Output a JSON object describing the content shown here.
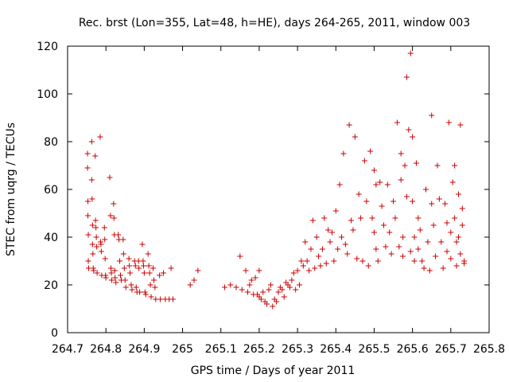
{
  "chart_data": {
    "type": "scatter",
    "title": "Rec. brst (Lon=355, Lat=48, h=HE), days 264-265, 2011, window 003",
    "xlabel": "GPS time / Days of year 2011",
    "ylabel": "STEC from uqrg / TECUs",
    "xlim": [
      264.7,
      265.8
    ],
    "ylim": [
      0,
      120
    ],
    "xticks": [
      "264.7",
      "264.8",
      "264.9",
      "265",
      "265.1",
      "265.2",
      "265.3",
      "265.4",
      "265.5",
      "265.6",
      "265.7",
      "265.8"
    ],
    "yticks": [
      "0",
      "20",
      "40",
      "60",
      "80",
      "100",
      "120"
    ],
    "grid": false,
    "marker": "+",
    "color": "#cc0000",
    "points": [
      [
        264.752,
        75
      ],
      [
        264.752,
        69
      ],
      [
        264.753,
        55
      ],
      [
        264.753,
        49
      ],
      [
        264.754,
        41
      ],
      [
        264.754,
        30
      ],
      [
        264.755,
        27
      ],
      [
        264.763,
        80
      ],
      [
        264.763,
        64
      ],
      [
        264.764,
        56
      ],
      [
        264.765,
        45
      ],
      [
        264.765,
        37
      ],
      [
        264.766,
        33
      ],
      [
        264.767,
        27
      ],
      [
        264.768,
        26
      ],
      [
        264.772,
        74
      ],
      [
        264.773,
        47
      ],
      [
        264.774,
        44
      ],
      [
        264.775,
        40
      ],
      [
        264.776,
        36
      ],
      [
        264.777,
        25
      ],
      [
        264.785,
        82
      ],
      [
        264.786,
        38
      ],
      [
        264.787,
        37
      ],
      [
        264.788,
        34
      ],
      [
        264.789,
        24
      ],
      [
        264.796,
        44
      ],
      [
        264.797,
        39
      ],
      [
        264.798,
        31
      ],
      [
        264.799,
        24
      ],
      [
        264.8,
        23
      ],
      [
        264.81,
        65
      ],
      [
        264.812,
        49
      ],
      [
        264.813,
        27
      ],
      [
        264.814,
        25
      ],
      [
        264.815,
        22
      ],
      [
        264.82,
        54
      ],
      [
        264.821,
        48
      ],
      [
        264.822,
        41
      ],
      [
        264.823,
        26
      ],
      [
        264.824,
        23
      ],
      [
        264.826,
        21
      ],
      [
        264.832,
        41
      ],
      [
        264.834,
        39
      ],
      [
        264.836,
        30
      ],
      [
        264.838,
        24
      ],
      [
        264.84,
        22
      ],
      [
        264.845,
        39
      ],
      [
        264.846,
        33
      ],
      [
        264.848,
        27
      ],
      [
        264.85,
        22
      ],
      [
        264.852,
        19
      ],
      [
        264.86,
        31
      ],
      [
        264.861,
        28
      ],
      [
        264.863,
        25
      ],
      [
        264.866,
        20
      ],
      [
        264.868,
        18
      ],
      [
        264.875,
        30
      ],
      [
        264.877,
        28
      ],
      [
        264.879,
        19
      ],
      [
        264.881,
        17
      ],
      [
        264.885,
        30
      ],
      [
        264.886,
        27
      ],
      [
        264.888,
        17
      ],
      [
        264.895,
        37
      ],
      [
        264.897,
        30
      ],
      [
        264.898,
        28
      ],
      [
        264.9,
        25
      ],
      [
        264.902,
        17
      ],
      [
        264.904,
        16
      ],
      [
        264.91,
        33
      ],
      [
        264.912,
        28
      ],
      [
        264.914,
        25
      ],
      [
        264.916,
        20
      ],
      [
        264.918,
        15
      ],
      [
        264.923,
        27
      ],
      [
        264.925,
        22
      ],
      [
        264.928,
        19
      ],
      [
        264.93,
        14
      ],
      [
        264.94,
        24
      ],
      [
        264.942,
        14
      ],
      [
        264.95,
        25
      ],
      [
        264.955,
        14
      ],
      [
        264.965,
        14
      ],
      [
        264.97,
        27
      ],
      [
        264.975,
        14
      ],
      [
        265.02,
        20
      ],
      [
        265.03,
        22
      ],
      [
        265.04,
        26
      ],
      [
        265.11,
        19
      ],
      [
        265.125,
        20
      ],
      [
        265.14,
        19
      ],
      [
        265.15,
        32
      ],
      [
        265.155,
        18
      ],
      [
        265.165,
        26
      ],
      [
        265.17,
        17
      ],
      [
        265.175,
        20
      ],
      [
        265.18,
        22
      ],
      [
        265.185,
        16
      ],
      [
        265.19,
        23
      ],
      [
        265.195,
        16
      ],
      [
        265.2,
        15
      ],
      [
        265.2,
        26
      ],
      [
        265.205,
        14
      ],
      [
        265.21,
        17
      ],
      [
        265.215,
        13
      ],
      [
        265.22,
        12
      ],
      [
        265.225,
        18
      ],
      [
        265.23,
        20
      ],
      [
        265.235,
        11
      ],
      [
        265.24,
        14
      ],
      [
        265.245,
        13
      ],
      [
        265.25,
        17
      ],
      [
        265.255,
        19
      ],
      [
        265.26,
        18
      ],
      [
        265.265,
        15
      ],
      [
        265.27,
        21
      ],
      [
        265.275,
        20
      ],
      [
        265.28,
        19
      ],
      [
        265.285,
        22
      ],
      [
        265.29,
        25
      ],
      [
        265.295,
        18
      ],
      [
        265.3,
        26
      ],
      [
        265.305,
        20
      ],
      [
        265.31,
        30
      ],
      [
        265.315,
        28
      ],
      [
        265.32,
        38
      ],
      [
        265.325,
        30
      ],
      [
        265.33,
        26
      ],
      [
        265.335,
        35
      ],
      [
        265.34,
        47
      ],
      [
        265.345,
        27
      ],
      [
        265.35,
        40
      ],
      [
        265.355,
        32
      ],
      [
        265.36,
        28
      ],
      [
        265.365,
        35
      ],
      [
        265.37,
        48
      ],
      [
        265.375,
        29
      ],
      [
        265.38,
        43
      ],
      [
        265.385,
        38
      ],
      [
        265.39,
        42
      ],
      [
        265.395,
        30
      ],
      [
        265.4,
        51
      ],
      [
        265.405,
        35
      ],
      [
        265.41,
        62
      ],
      [
        265.415,
        40
      ],
      [
        265.42,
        75
      ],
      [
        265.425,
        37
      ],
      [
        265.43,
        33
      ],
      [
        265.435,
        87
      ],
      [
        265.44,
        47
      ],
      [
        265.445,
        43
      ],
      [
        265.45,
        82
      ],
      [
        265.455,
        31
      ],
      [
        265.46,
        58
      ],
      [
        265.465,
        48
      ],
      [
        265.47,
        30
      ],
      [
        265.475,
        72
      ],
      [
        265.48,
        55
      ],
      [
        265.485,
        28
      ],
      [
        265.49,
        76
      ],
      [
        265.495,
        48
      ],
      [
        265.5,
        68
      ],
      [
        265.5,
        42
      ],
      [
        265.505,
        62
      ],
      [
        265.505,
        35
      ],
      [
        265.51,
        30
      ],
      [
        265.515,
        63
      ],
      [
        265.52,
        53
      ],
      [
        265.525,
        45
      ],
      [
        265.53,
        36
      ],
      [
        265.535,
        62
      ],
      [
        265.54,
        42
      ],
      [
        265.545,
        33
      ],
      [
        265.55,
        55
      ],
      [
        265.555,
        48
      ],
      [
        265.56,
        88
      ],
      [
        265.565,
        36
      ],
      [
        265.57,
        75
      ],
      [
        265.57,
        64
      ],
      [
        265.575,
        40
      ],
      [
        265.575,
        32
      ],
      [
        265.58,
        70
      ],
      [
        265.585,
        57
      ],
      [
        265.585,
        107
      ],
      [
        265.59,
        85
      ],
      [
        265.595,
        34
      ],
      [
        265.595,
        117
      ],
      [
        265.6,
        82
      ],
      [
        265.6,
        55
      ],
      [
        265.605,
        40
      ],
      [
        265.605,
        30
      ],
      [
        265.61,
        71
      ],
      [
        265.615,
        48
      ],
      [
        265.615,
        35
      ],
      [
        265.62,
        43
      ],
      [
        265.625,
        30
      ],
      [
        265.63,
        27
      ],
      [
        265.635,
        60
      ],
      [
        265.64,
        38
      ],
      [
        265.645,
        26
      ],
      [
        265.65,
        91
      ],
      [
        265.65,
        54
      ],
      [
        265.655,
        45
      ],
      [
        265.66,
        32
      ],
      [
        265.665,
        70
      ],
      [
        265.67,
        56
      ],
      [
        265.675,
        38
      ],
      [
        265.68,
        27
      ],
      [
        265.685,
        54
      ],
      [
        265.69,
        46
      ],
      [
        265.69,
        34
      ],
      [
        265.695,
        88
      ],
      [
        265.7,
        42
      ],
      [
        265.7,
        31
      ],
      [
        265.705,
        63
      ],
      [
        265.71,
        70
      ],
      [
        265.71,
        48
      ],
      [
        265.715,
        38
      ],
      [
        265.715,
        28
      ],
      [
        265.72,
        58
      ],
      [
        265.72,
        40
      ],
      [
        265.725,
        87
      ],
      [
        265.725,
        33
      ],
      [
        265.73,
        52
      ],
      [
        265.73,
        45
      ],
      [
        265.735,
        30
      ],
      [
        265.735,
        29
      ]
    ]
  }
}
